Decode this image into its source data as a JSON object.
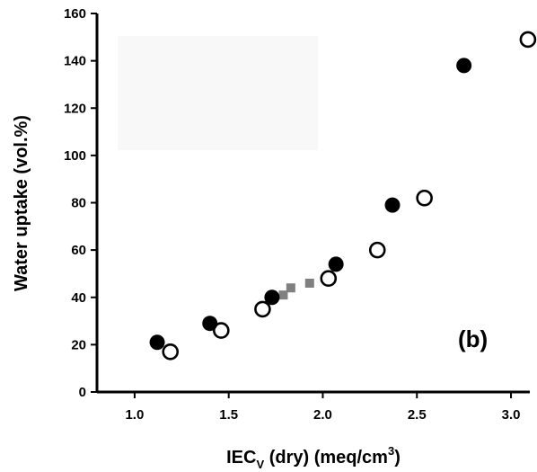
{
  "chart_data": {
    "type": "scatter",
    "xlabel": "IEC",
    "xlabel_sub": "V",
    "xlabel_rest": " (dry) (meq/cm",
    "xlabel_sup": "3",
    "xlabel_close": ")",
    "ylabel": "Water uptake (vol.%)",
    "annotation": "(b)",
    "xlim": [
      0.8,
      3.1
    ],
    "ylim": [
      0,
      160
    ],
    "x_ticks": [
      "1.0",
      "1.5",
      "2.0",
      "2.5",
      "3.0"
    ],
    "x_tick_values": [
      1.0,
      1.5,
      2.0,
      2.5,
      3.0
    ],
    "y_ticks": [
      "0",
      "20",
      "40",
      "60",
      "80",
      "100",
      "120",
      "140",
      "160"
    ],
    "y_tick_values": [
      0,
      20,
      40,
      60,
      80,
      100,
      120,
      140,
      160
    ],
    "grid": false,
    "legend": "none",
    "series": [
      {
        "marker": "filled-circle",
        "color": "#000000",
        "x": [
          1.12,
          1.4,
          1.73,
          2.07,
          2.37,
          2.75
        ],
        "y": [
          21,
          29,
          40,
          54,
          79,
          138
        ]
      },
      {
        "marker": "open-circle",
        "color": "#000000",
        "x": [
          1.19,
          1.46,
          1.68,
          2.03,
          2.29,
          2.54,
          3.09
        ],
        "y": [
          17,
          26,
          35,
          48,
          60,
          82,
          149
        ]
      },
      {
        "marker": "gray-square",
        "color": "#808080",
        "x": [
          1.68,
          1.79,
          1.83,
          1.93,
          2.07
        ],
        "y": [
          35,
          41,
          44,
          46,
          54
        ]
      }
    ]
  }
}
